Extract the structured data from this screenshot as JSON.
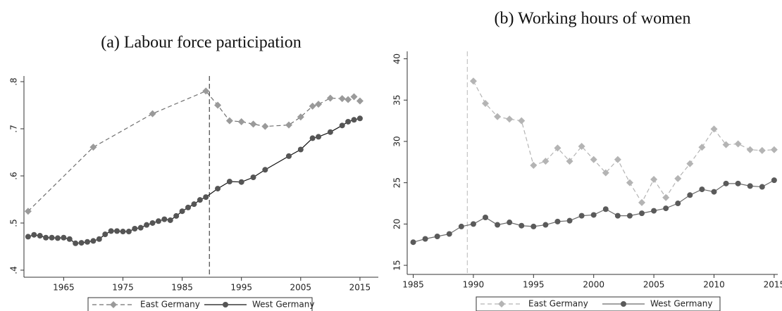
{
  "chart_data": [
    {
      "type": "line",
      "title": "(a) Labour force participation",
      "xlim": [
        1958.3,
        2018.1
      ],
      "xticks": [
        1965,
        1975,
        1985,
        1995,
        2005,
        2015
      ],
      "ylim": [
        0.385,
        0.812
      ],
      "yticks": [
        {
          "value": 0.4,
          "label": ".4"
        },
        {
          "value": 0.5,
          "label": ".5"
        },
        {
          "value": 0.6,
          "label": ".6"
        },
        {
          "value": 0.7,
          "label": ".7"
        },
        {
          "value": 0.8,
          "label": ".8"
        }
      ],
      "vline": 1989.6,
      "vline_color": "#555555",
      "series": [
        {
          "name": "East Germany",
          "color": "#9a9a9a",
          "line_color": "#707070",
          "marker": "diamond",
          "dashed": true,
          "x": [
            1959,
            1970,
            1980,
            1989,
            1991,
            1993,
            1995,
            1997,
            1999,
            2003,
            2005,
            2007,
            2008,
            2010,
            2012,
            2013,
            2014,
            2015
          ],
          "values": [
            0.525,
            0.661,
            0.732,
            0.78,
            0.75,
            0.717,
            0.715,
            0.71,
            0.705,
            0.708,
            0.725,
            0.748,
            0.752,
            0.765,
            0.764,
            0.762,
            0.768,
            0.759
          ]
        },
        {
          "name": "West Germany",
          "color": "#555555",
          "line_color": "#111111",
          "marker": "circle",
          "dashed": false,
          "x": [
            1959,
            1960,
            1961,
            1962,
            1963,
            1964,
            1965,
            1966,
            1967,
            1968,
            1969,
            1970,
            1971,
            1972,
            1973,
            1974,
            1975,
            1976,
            1977,
            1978,
            1979,
            1980,
            1981,
            1982,
            1983,
            1984,
            1985,
            1986,
            1987,
            1988,
            1989,
            1991,
            1993,
            1995,
            1997,
            1999,
            2003,
            2005,
            2007,
            2008,
            2010,
            2012,
            2013,
            2014,
            2015
          ],
          "values": [
            0.471,
            0.475,
            0.473,
            0.469,
            0.469,
            0.468,
            0.469,
            0.466,
            0.457,
            0.458,
            0.46,
            0.462,
            0.466,
            0.476,
            0.483,
            0.483,
            0.482,
            0.482,
            0.488,
            0.49,
            0.496,
            0.5,
            0.504,
            0.508,
            0.506,
            0.515,
            0.525,
            0.533,
            0.54,
            0.549,
            0.555,
            0.573,
            0.588,
            0.587,
            0.597,
            0.613,
            0.642,
            0.656,
            0.68,
            0.683,
            0.693,
            0.707,
            0.715,
            0.719,
            0.722
          ]
        }
      ]
    },
    {
      "type": "line",
      "title": "(b) Working hours of women",
      "xlim": [
        1984.5,
        2015.3
      ],
      "xticks": [
        1985,
        1990,
        1995,
        2000,
        2005,
        2010,
        2015
      ],
      "ylim": [
        13.9,
        40.9
      ],
      "yticks": [
        15,
        20,
        25,
        30,
        35,
        40
      ],
      "vline": 1989.5,
      "vline_color": "#c8c8c8",
      "series": [
        {
          "name": "East Germany",
          "color": "#b4b4b4",
          "line_color": "#b4b4b4",
          "marker": "diamond",
          "dashed": true,
          "x": [
            1990,
            1991,
            1992,
            1993,
            1994,
            1995,
            1996,
            1997,
            1998,
            1999,
            2000,
            2001,
            2002,
            2003,
            2004,
            2005,
            2006,
            2007,
            2008,
            2009,
            2010,
            2011,
            2012,
            2013,
            2014,
            2015
          ],
          "values": [
            37.3,
            34.6,
            33.0,
            32.7,
            32.5,
            27.1,
            27.6,
            29.2,
            27.6,
            29.4,
            27.8,
            26.2,
            27.8,
            25.0,
            22.6,
            25.4,
            23.2,
            25.5,
            27.3,
            29.3,
            31.5,
            29.6,
            29.7,
            29.0,
            28.9,
            29.0
          ]
        },
        {
          "name": "West Germany",
          "color": "#5a5a5a",
          "line_color": "#6a6a6a",
          "marker": "circle",
          "dashed": false,
          "x": [
            1985,
            1986,
            1987,
            1988,
            1989,
            1990,
            1991,
            1992,
            1993,
            1994,
            1995,
            1996,
            1997,
            1998,
            1999,
            2000,
            2001,
            2002,
            2003,
            2004,
            2005,
            2006,
            2007,
            2008,
            2009,
            2010,
            2011,
            2012,
            2013,
            2014,
            2015
          ],
          "values": [
            17.8,
            18.2,
            18.5,
            18.8,
            19.7,
            20.0,
            20.8,
            19.9,
            20.2,
            19.8,
            19.7,
            19.9,
            20.3,
            20.4,
            21.0,
            21.1,
            21.8,
            21.0,
            21.0,
            21.3,
            21.6,
            21.9,
            22.5,
            23.5,
            24.2,
            23.9,
            24.9,
            24.9,
            24.6,
            24.5,
            25.3
          ]
        }
      ]
    }
  ]
}
